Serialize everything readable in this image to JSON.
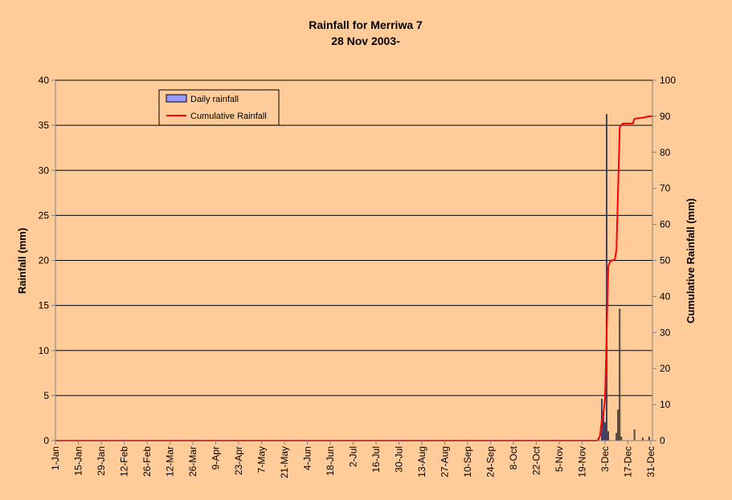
{
  "chart_data": {
    "type": "bar+line",
    "title": "Rainfall for Merriwa 7",
    "subtitle": "28 Nov 2003-",
    "ylabel_left": "Rainfall (mm)",
    "ylabel_right": "Cumulative Rainfall (mm)",
    "xlabel": "",
    "ylim_left": [
      0,
      40
    ],
    "ylim_right": [
      0,
      100
    ],
    "yticks_left": [
      "0",
      "5",
      "10",
      "15",
      "20",
      "25",
      "30",
      "35",
      "40"
    ],
    "yticks_right": [
      "0",
      "10",
      "20",
      "30",
      "40",
      "50",
      "60",
      "70",
      "80",
      "90",
      "100"
    ],
    "x_day_range": [
      1,
      366
    ],
    "x_ticks": [
      {
        "label": "1-Jan",
        "day": 1
      },
      {
        "label": "15-Jan",
        "day": 15
      },
      {
        "label": "29-Jan",
        "day": 29
      },
      {
        "label": "12-Feb",
        "day": 43
      },
      {
        "label": "26-Feb",
        "day": 57
      },
      {
        "label": "12-Mar",
        "day": 71
      },
      {
        "label": "26-Mar",
        "day": 85
      },
      {
        "label": "9-Apr",
        "day": 99
      },
      {
        "label": "23-Apr",
        "day": 113
      },
      {
        "label": "7-May",
        "day": 127
      },
      {
        "label": "21-May",
        "day": 141
      },
      {
        "label": "4-Jun",
        "day": 155
      },
      {
        "label": "18-Jun",
        "day": 169
      },
      {
        "label": "2-Jul",
        "day": 183
      },
      {
        "label": "16-Jul",
        "day": 197
      },
      {
        "label": "30-Jul",
        "day": 211
      },
      {
        "label": "13-Aug",
        "day": 225
      },
      {
        "label": "27-Aug",
        "day": 239
      },
      {
        "label": "10-Sep",
        "day": 253
      },
      {
        "label": "24-Sep",
        "day": 267
      },
      {
        "label": "8-Oct",
        "day": 281
      },
      {
        "label": "22-Oct",
        "day": 295
      },
      {
        "label": "5-Nov",
        "day": 309
      },
      {
        "label": "19-Nov",
        "day": 323
      },
      {
        "label": "3-Dec",
        "day": 337
      },
      {
        "label": "17-Dec",
        "day": 351
      },
      {
        "label": "31-Dec",
        "day": 365
      }
    ],
    "grid": "horizontal",
    "legend_position": "top-left",
    "series": [
      {
        "name": "Daily rainfall",
        "type": "bar",
        "axis": "left",
        "color": "#9999FF",
        "points": [
          {
            "day": 333,
            "value": 0.3
          },
          {
            "day": 335,
            "value": 4.6
          },
          {
            "day": 336,
            "value": 3.0
          },
          {
            "day": 337,
            "value": 2.0
          },
          {
            "day": 338,
            "value": 36.2
          },
          {
            "day": 339,
            "value": 1.0
          },
          {
            "day": 344,
            "value": 0.8
          },
          {
            "day": 345,
            "value": 3.4
          },
          {
            "day": 346,
            "value": 14.6
          },
          {
            "day": 347,
            "value": 0.4
          },
          {
            "day": 355,
            "value": 1.2
          },
          {
            "day": 360,
            "value": 0.3
          },
          {
            "day": 364,
            "value": 0.4
          }
        ]
      },
      {
        "name": "Cumulative Rainfall",
        "type": "line",
        "axis": "right",
        "color": "#FF0000",
        "points": [
          {
            "day": 1,
            "value": 0
          },
          {
            "day": 332,
            "value": 0
          },
          {
            "day": 333,
            "value": 0.3
          },
          {
            "day": 334,
            "value": 1.5
          },
          {
            "day": 335,
            "value": 5.5
          },
          {
            "day": 336,
            "value": 7.5
          },
          {
            "day": 337,
            "value": 11.5
          },
          {
            "day": 338,
            "value": 30.0
          },
          {
            "day": 339,
            "value": 48.5
          },
          {
            "day": 340,
            "value": 49.5
          },
          {
            "day": 341,
            "value": 50.0
          },
          {
            "day": 343,
            "value": 50.2
          },
          {
            "day": 344,
            "value": 53.0
          },
          {
            "day": 345,
            "value": 70.0
          },
          {
            "day": 346,
            "value": 87.0
          },
          {
            "day": 347,
            "value": 87.6
          },
          {
            "day": 348,
            "value": 88.0
          },
          {
            "day": 354,
            "value": 88.0
          },
          {
            "day": 355,
            "value": 89.3
          },
          {
            "day": 356,
            "value": 89.4
          },
          {
            "day": 360,
            "value": 89.6
          },
          {
            "day": 364,
            "value": 90.0
          },
          {
            "day": 366,
            "value": 90.0
          }
        ]
      }
    ]
  }
}
